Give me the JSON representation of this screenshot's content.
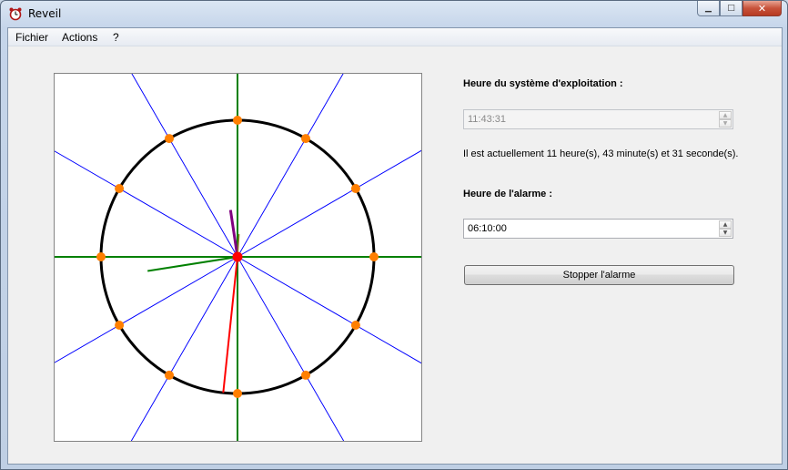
{
  "window": {
    "title": "Reveil"
  },
  "menu": {
    "items": [
      "Fichier",
      "Actions",
      "?"
    ]
  },
  "clock": {
    "hours": 11,
    "minutes": 43,
    "seconds": 31,
    "colors": {
      "face": "#000000",
      "axes": "#008000",
      "rays": "#0000ff",
      "markers": "#ff7f00",
      "hour_hand": "#800080",
      "minute_hand": "#008000",
      "second_hand": "#ff0000",
      "center": "#ff0000"
    }
  },
  "system_time": {
    "label": "Heure du système d'exploitation :",
    "value": "11:43:31",
    "sentence": "Il est actuellement 11 heure(s), 43 minute(s) et 31 seconde(s)."
  },
  "alarm": {
    "label": "Heure de l'alarme :",
    "value": "06:10:00",
    "stop_button": "Stopper l'alarme"
  }
}
